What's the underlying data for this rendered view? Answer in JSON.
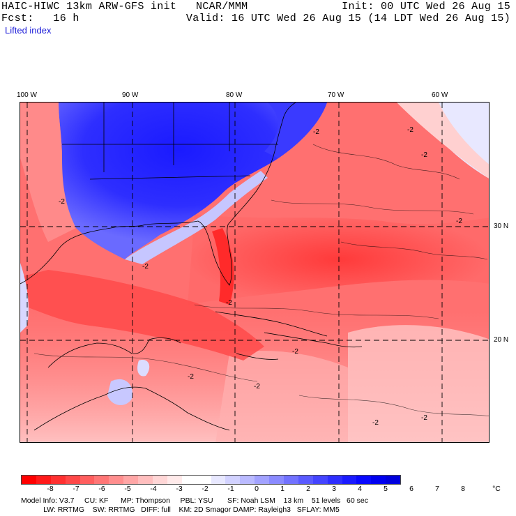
{
  "header": {
    "line1_left": "HAIC-HIWC 13km ARW-GFS init   NCAR/MMM",
    "line1_right": "Init: 00 UTC Wed 26 Aug 15",
    "line2_left": "Fcst:   16 h",
    "line2_right": "Valid: 16 UTC Wed 26 Aug 15 (14 LDT Wed 26 Aug 15)",
    "field": "Lifted index"
  },
  "map": {
    "lon_labels": [
      "100 W",
      "90 W",
      "80 W",
      "70 W",
      "60 W"
    ],
    "lat_labels": [
      "30 N",
      "20 N"
    ],
    "contour_label": "-2"
  },
  "legend": {
    "unit": "°C",
    "ticks": [
      "-8",
      "-7",
      "-6",
      "-5",
      "-4",
      "-3",
      "-2",
      "-1",
      "0",
      "1",
      "2",
      "3",
      "4",
      "5",
      "6",
      "7",
      "8"
    ],
    "colors": [
      "#ff0000",
      "#ff1a1a",
      "#ff3030",
      "#ff4848",
      "#ff5e5e",
      "#ff7676",
      "#ff8e8e",
      "#ffa6a6",
      "#ffbebe",
      "#ffd6d6",
      "#ffeaea",
      "#ffffff",
      "#ffffff",
      "#e8e8ff",
      "#d2d2ff",
      "#babaff",
      "#a2a2ff",
      "#8a8aff",
      "#7272ff",
      "#5a5aff",
      "#4444ff",
      "#2e2eff",
      "#1a1aff",
      "#0808ff",
      "#0000f0",
      "#0000dd"
    ]
  },
  "model_info": {
    "line1": "Model Info: V3.7     CU: KF      MP: Thompson     PBL: YSU       SF: Noah LSM    13 km    51 levels   60 sec",
    "line2": "           LW: RRTMG    SW: RRTMG   DIFF: full    KM: 2D Smagor DAMP: Rayleigh3   SFLAY: MM5"
  },
  "colors": {
    "unstable": "#ff5a5a",
    "stable": "#1a1aff",
    "neutral": "#ffdada"
  }
}
